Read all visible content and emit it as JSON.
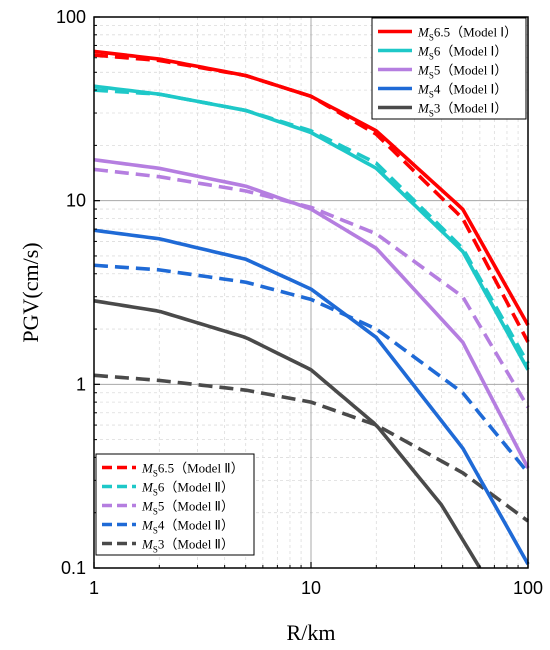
{
  "chart_data": {
    "type": "line",
    "xscale": "log",
    "yscale": "log",
    "xlim": [
      1,
      100
    ],
    "ylim": [
      0.1,
      100
    ],
    "xlabel": "R/km",
    "ylabel": "PGV(cm/s)",
    "xticks": [
      "1",
      "10",
      "100"
    ],
    "yticks": [
      "0.1",
      "1",
      "10",
      "100"
    ],
    "grid": true,
    "legend_placement": [
      "top-right",
      "bottom-left"
    ],
    "series": [
      {
        "name": "MS6.5（Model Ⅰ）",
        "sub": "S",
        "rest": "6.5（Model Ⅰ）",
        "model": "I",
        "color": "#ff0000",
        "dash": "solid",
        "x": [
          1,
          2,
          5,
          10,
          20,
          50,
          100
        ],
        "y": [
          65,
          59,
          48,
          37,
          24,
          9,
          2.1
        ]
      },
      {
        "name": "MS6（Model Ⅰ）",
        "sub": "S",
        "rest": "6（Model Ⅰ）",
        "model": "I",
        "color": "#1ec8c8",
        "dash": "solid",
        "x": [
          1,
          2,
          5,
          10,
          20,
          50,
          100
        ],
        "y": [
          42,
          38,
          31,
          23.5,
          15,
          5.3,
          1.2
        ]
      },
      {
        "name": "MS5（Model Ⅰ）",
        "sub": "S",
        "rest": "5（Model Ⅰ）",
        "model": "I",
        "color": "#b57ee0",
        "dash": "solid",
        "x": [
          1,
          2,
          5,
          10,
          20,
          50,
          100
        ],
        "y": [
          16.7,
          15,
          12,
          9,
          5.5,
          1.7,
          0.35
        ]
      },
      {
        "name": "MS4（Model Ⅰ）",
        "sub": "S",
        "rest": "4（Model Ⅰ）",
        "model": "I",
        "color": "#1f6ad6",
        "dash": "solid",
        "x": [
          1,
          2,
          5,
          10,
          20,
          50,
          100
        ],
        "y": [
          6.9,
          6.2,
          4.8,
          3.3,
          1.8,
          0.45,
          0.105
        ]
      },
      {
        "name": "MS3（Model Ⅰ）",
        "sub": "S",
        "rest": "3（Model Ⅰ）",
        "model": "I",
        "color": "#4a4a4a",
        "dash": "solid",
        "x": [
          1,
          2,
          5,
          10,
          20,
          40,
          60
        ],
        "y": [
          2.85,
          2.5,
          1.8,
          1.2,
          0.6,
          0.22,
          0.1
        ]
      },
      {
        "name": "MS6.5（Model Ⅱ）",
        "sub": "S",
        "rest": "6.5（Model Ⅱ）",
        "model": "II",
        "color": "#ff0000",
        "dash": "dashed",
        "x": [
          1,
          2,
          5,
          10,
          20,
          50,
          100
        ],
        "y": [
          62,
          58,
          48,
          37,
          23,
          8,
          1.7
        ]
      },
      {
        "name": "MS6（Model Ⅱ）",
        "sub": "S",
        "rest": "6（Model Ⅱ）",
        "model": "II",
        "color": "#1ec8c8",
        "dash": "dashed",
        "x": [
          1,
          2,
          5,
          10,
          20,
          50,
          100
        ],
        "y": [
          40,
          38,
          31,
          24,
          16,
          5.5,
          1.3
        ]
      },
      {
        "name": "MS5（Model Ⅱ）",
        "sub": "S",
        "rest": "5（Model Ⅱ）",
        "model": "II",
        "color": "#b57ee0",
        "dash": "dashed",
        "x": [
          1,
          2,
          5,
          10,
          20,
          50,
          100
        ],
        "y": [
          14.8,
          13.5,
          11.3,
          9.2,
          6.6,
          3,
          0.75
        ]
      },
      {
        "name": "MS4（Model Ⅱ）",
        "sub": "S",
        "rest": "4（Model Ⅱ）",
        "model": "II",
        "color": "#1f6ad6",
        "dash": "dashed",
        "x": [
          1,
          2,
          5,
          10,
          20,
          50,
          100
        ],
        "y": [
          4.45,
          4.2,
          3.6,
          2.9,
          2,
          0.9,
          0.33
        ]
      },
      {
        "name": "MS3（Model Ⅱ）",
        "sub": "S",
        "rest": "3（Model Ⅱ）",
        "model": "II",
        "color": "#4a4a4a",
        "dash": "dashed",
        "x": [
          1,
          2,
          5,
          10,
          20,
          50,
          100
        ],
        "y": [
          1.12,
          1.05,
          0.93,
          0.8,
          0.6,
          0.33,
          0.18
        ]
      }
    ]
  }
}
